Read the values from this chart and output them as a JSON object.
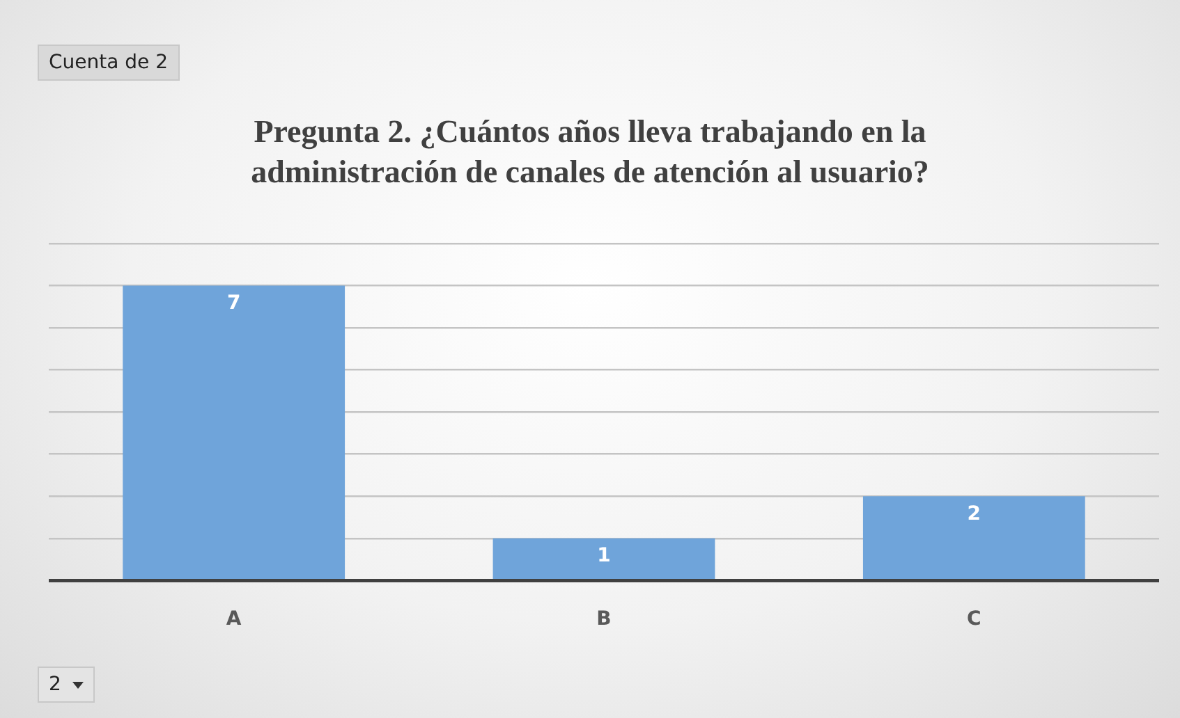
{
  "chart_data": {
    "type": "bar",
    "title": "Pregunta 2. ¿Cuántos años lleva trabajando  en la administración de canales de atención al usuario?",
    "categories": [
      "A",
      "B",
      "C"
    ],
    "values": [
      7,
      1,
      2
    ],
    "color": "#6fa4da",
    "tick_labels": "x",
    "grid": "y",
    "data_labels": true,
    "annotations": [
      "Cuenta de 2",
      "2"
    ]
  }
}
